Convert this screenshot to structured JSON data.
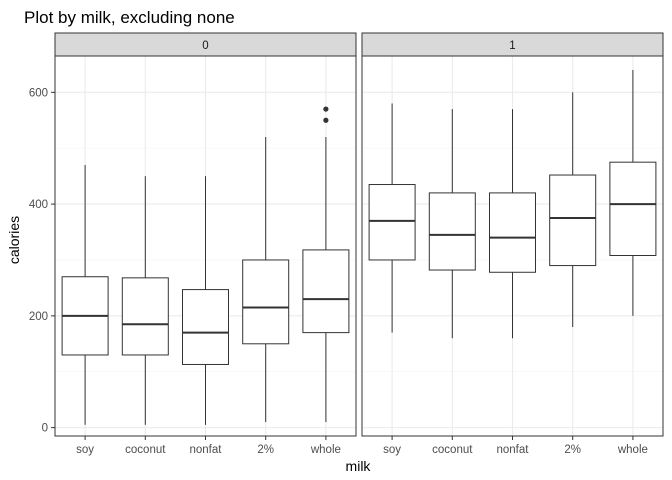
{
  "chart_data": {
    "type": "boxplot",
    "title": "Plot by milk, excluding none",
    "xlabel": "milk",
    "ylabel": "calories",
    "categories": [
      "soy",
      "coconut",
      "nonfat",
      "2%",
      "whole"
    ],
    "facet_variable": "",
    "ylim": [
      -15,
      665
    ],
    "yticks": [
      0,
      200,
      400,
      600
    ],
    "grid": true,
    "colors": {
      "panel_border": "#333333",
      "strip_fill": "#d9d9d9",
      "grid_major": "#ebebeb",
      "grid_minor": "#f5f5f5",
      "box_fill": "#ffffff",
      "box_line": "#333333"
    },
    "panels": [
      {
        "label": "0",
        "boxes": [
          {
            "category": "soy",
            "min": 5,
            "q1": 130,
            "median": 200,
            "q3": 270,
            "max": 470,
            "outliers": []
          },
          {
            "category": "coconut",
            "min": 5,
            "q1": 130,
            "median": 185,
            "q3": 268,
            "max": 450,
            "outliers": []
          },
          {
            "category": "nonfat",
            "min": 5,
            "q1": 113,
            "median": 170,
            "q3": 247,
            "max": 450,
            "outliers": []
          },
          {
            "category": "2%",
            "min": 10,
            "q1": 150,
            "median": 215,
            "q3": 300,
            "max": 520,
            "outliers": []
          },
          {
            "category": "whole",
            "min": 10,
            "q1": 170,
            "median": 230,
            "q3": 318,
            "max": 520,
            "outliers": [
              550,
              570
            ]
          }
        ]
      },
      {
        "label": "1",
        "boxes": [
          {
            "category": "soy",
            "min": 170,
            "q1": 300,
            "median": 370,
            "q3": 435,
            "max": 580,
            "outliers": []
          },
          {
            "category": "coconut",
            "min": 160,
            "q1": 282,
            "median": 345,
            "q3": 420,
            "max": 570,
            "outliers": []
          },
          {
            "category": "nonfat",
            "min": 160,
            "q1": 278,
            "median": 340,
            "q3": 420,
            "max": 570,
            "outliers": []
          },
          {
            "category": "2%",
            "min": 180,
            "q1": 290,
            "median": 375,
            "q3": 452,
            "max": 600,
            "outliers": []
          },
          {
            "category": "whole",
            "min": 200,
            "q1": 308,
            "median": 400,
            "q3": 475,
            "max": 640,
            "outliers": []
          }
        ]
      }
    ]
  }
}
